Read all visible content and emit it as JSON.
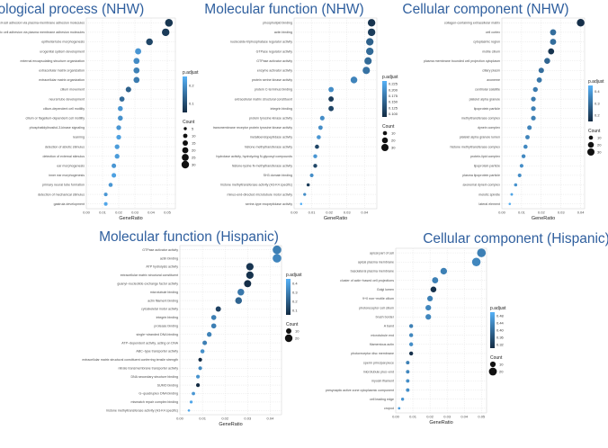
{
  "chart_data": [
    {
      "type": "scatter",
      "title": "Biological process (NHW)",
      "xlabel": "GeneRatio",
      "xlim": [
        0,
        0.055
      ],
      "xticks": [
        "0.00",
        "0.01",
        "0.02",
        "0.03",
        "0.04",
        "0.05"
      ],
      "color_legend_title": "p.adjust",
      "color_ticks": [
        "0.2",
        "0.1"
      ],
      "color_range": [
        0.0,
        0.25
      ],
      "size_legend_title": "Count",
      "size_legend_values": [
        "5",
        "10",
        "15",
        "20",
        "25",
        "30"
      ],
      "size_values": [
        5,
        10,
        15,
        20,
        25,
        30
      ],
      "categories": [
        "cell-cell adhesion via plasma-membrane adhesion molecules",
        "homophilic cell adhesion via plasma membrane adhesion molecules",
        "epithelial tube morphogenesis",
        "urogenital system development",
        "external encapsulating structure organization",
        "extracellular matrix organization",
        "extracellular matrix organization",
        "cilium movement",
        "neural tube development",
        "cilium-dependent cell motility",
        "cilium or flagellum-dependent cell motility",
        "phosphatidylinositol-3-kinase signaling",
        "learning",
        "detection of abiotic stimulus",
        "detection of external stimulus",
        "ear morphogenesis",
        "inner ear morphogenesis",
        "primary neural tube formation",
        "detection of mechanical stimulus",
        "gastrula development"
      ],
      "x": [
        0.051,
        0.049,
        0.039,
        0.032,
        0.031,
        0.031,
        0.031,
        0.026,
        0.022,
        0.021,
        0.021,
        0.02,
        0.02,
        0.019,
        0.019,
        0.017,
        0.017,
        0.015,
        0.012,
        0.012
      ],
      "count": [
        31,
        30,
        24,
        20,
        19,
        19,
        19,
        16,
        14,
        13,
        13,
        12,
        12,
        12,
        12,
        11,
        11,
        9,
        7,
        7
      ],
      "padjust": [
        0.02,
        0.03,
        0.05,
        0.2,
        0.18,
        0.16,
        0.15,
        0.1,
        0.12,
        0.2,
        0.19,
        0.2,
        0.22,
        0.21,
        0.21,
        0.2,
        0.22,
        0.2,
        0.2,
        0.23
      ]
    },
    {
      "type": "scatter",
      "title": "Molecular function (NHW)",
      "xlabel": "GeneRatio",
      "xlim": [
        0,
        0.047
      ],
      "xticks": [
        "0.00",
        "0.01",
        "0.02",
        "0.03",
        "0.04"
      ],
      "color_legend_title": "p.adjust",
      "color_ticks": [
        "0.225",
        "0.200",
        "0.175",
        "0.150",
        "0.125",
        "0.100"
      ],
      "color_range": [
        0.09,
        0.24
      ],
      "size_legend_title": "Count",
      "size_legend_values": [
        "10",
        "20",
        "30"
      ],
      "size_values": [
        10,
        20,
        30
      ],
      "categories": [
        "phospholipid binding",
        "actin binding",
        "nucleoside-triphosphatase regulator activity",
        "GTPase regulator activity",
        "GTPase activator activity",
        "enzyme activator activity",
        "protein serine kinase activity",
        "protein C-terminus binding",
        "extracellular matrix structural constituent",
        "integrin binding",
        "protein tyrosine kinase activity",
        "transmembrane receptor protein tyrosine kinase activity",
        "metalloendopeptidase activity",
        "histone methyltransferase activity",
        "hydrolase activity, hydrolyzing N-glycosyl compounds",
        "histone-lysine N-methyltransferase activity",
        "SH3 domain binding",
        "histone methyltransferase activity (H3-K4 specific)",
        "minus-end-directed microtubule motor activity",
        "serine-type exopeptidase activity"
      ],
      "x": [
        0.044,
        0.044,
        0.043,
        0.043,
        0.042,
        0.041,
        0.034,
        0.021,
        0.021,
        0.021,
        0.016,
        0.015,
        0.014,
        0.013,
        0.012,
        0.012,
        0.01,
        0.008,
        0.006,
        0.004
      ],
      "count": [
        33,
        33,
        32,
        32,
        31,
        31,
        26,
        16,
        16,
        16,
        12,
        11,
        10,
        10,
        9,
        9,
        8,
        6,
        5,
        3
      ],
      "padjust": [
        0.1,
        0.11,
        0.15,
        0.16,
        0.16,
        0.17,
        0.19,
        0.2,
        0.11,
        0.12,
        0.2,
        0.2,
        0.21,
        0.12,
        0.21,
        0.12,
        0.2,
        0.11,
        0.2,
        0.24
      ]
    },
    {
      "type": "scatter",
      "title": "Cellular component (NHW)",
      "xlabel": "GeneRatio",
      "xlim": [
        0,
        0.042
      ],
      "xticks": [
        "0.00",
        "0.01",
        "0.02",
        "0.03",
        "0.04"
      ],
      "color_legend_title": "p.adjust",
      "color_ticks": [
        "0.4",
        "0.3",
        "0.2"
      ],
      "color_range": [
        0.15,
        0.45
      ],
      "size_legend_title": "Count",
      "size_legend_values": [
        "10",
        "20",
        "30"
      ],
      "size_values": [
        10,
        20,
        30
      ],
      "categories": [
        "collagen-containing extracellular matrix",
        "cell cortex",
        "cytoplasmic region",
        "motile cilium",
        "plasma membrane bounded cell projection cytoplasm",
        "ciliary plasm",
        "axoneme",
        "centriolar satellite",
        "platelet alpha granule",
        "lipoprotein particle",
        "methyltransferase complex",
        "dynein complex",
        "platelet alpha granule lumen",
        "histone methyltransferase complex",
        "protein-lipid complex",
        "lipoprotein particle",
        "plasma lipoprotein particle",
        "axonemal dynein complex",
        "meiotic spindle",
        "lateral element"
      ],
      "x": [
        0.04,
        0.026,
        0.026,
        0.025,
        0.023,
        0.02,
        0.019,
        0.017,
        0.016,
        0.016,
        0.016,
        0.014,
        0.013,
        0.012,
        0.011,
        0.01,
        0.009,
        0.007,
        0.005,
        0.004
      ],
      "count": [
        34,
        22,
        22,
        21,
        20,
        17,
        16,
        14,
        13,
        13,
        13,
        12,
        11,
        10,
        9,
        8,
        8,
        6,
        4,
        3
      ],
      "padjust": [
        0.16,
        0.3,
        0.3,
        0.17,
        0.28,
        0.3,
        0.32,
        0.33,
        0.33,
        0.34,
        0.34,
        0.35,
        0.35,
        0.36,
        0.36,
        0.37,
        0.37,
        0.38,
        0.42,
        0.44
      ]
    },
    {
      "type": "scatter",
      "title": "Molecular function (Hispanic)",
      "xlabel": "GeneRatio",
      "xlim": [
        0,
        0.045
      ],
      "xticks": [
        "0.00",
        "0.01",
        "0.02",
        "0.03",
        "0.04"
      ],
      "color_legend_title": "p.adjust",
      "color_ticks": [
        "0.4",
        "0.3",
        "0.2",
        "0.1"
      ],
      "color_range": [
        0.05,
        0.45
      ],
      "size_legend_title": "Count",
      "size_legend_values": [
        "10",
        "20"
      ],
      "size_values": [
        10,
        20
      ],
      "categories": [
        "GTPase activator activity",
        "actin binding",
        "ATP hydrolysis activity",
        "extracellular matrix structural constituent",
        "guanyl−nucleotide exchange factor activity",
        "microtubule binding",
        "actin filament binding",
        "cytoskeletal motor activity",
        "integrin binding",
        "protease binding",
        "single−stranded DNA binding",
        "ATP−dependent activity, acting on DNA",
        "ABC−type transporter activity",
        "extracellular matrix structural constituent conferring tensile strength",
        "nitrate transmembrane transporter activity",
        "DNA secondary structure binding",
        "SUMO binding",
        "G−quadruplex DNA binding",
        "mismatch repair complex binding",
        "histone methyltransferase activity (H3-K4 specific)"
      ],
      "x": [
        0.043,
        0.043,
        0.031,
        0.031,
        0.03,
        0.027,
        0.026,
        0.017,
        0.015,
        0.015,
        0.013,
        0.011,
        0.01,
        0.009,
        0.009,
        0.008,
        0.008,
        0.006,
        0.005,
        0.004
      ],
      "count": [
        26,
        26,
        19,
        19,
        18,
        16,
        16,
        10,
        9,
        9,
        8,
        7,
        6,
        5,
        5,
        5,
        5,
        4,
        3,
        2
      ],
      "padjust": [
        0.3,
        0.32,
        0.08,
        0.07,
        0.06,
        0.28,
        0.22,
        0.12,
        0.3,
        0.3,
        0.31,
        0.3,
        0.35,
        0.05,
        0.33,
        0.36,
        0.05,
        0.37,
        0.42,
        0.42
      ]
    },
    {
      "type": "scatter",
      "title": "Cellular component (Hispanic)",
      "xlabel": "GeneRatio",
      "xlim": [
        0,
        0.053
      ],
      "xticks": [
        "0.00",
        "0.01",
        "0.02",
        "0.03",
        "0.04",
        "0.05"
      ],
      "color_legend_title": "p.adjust",
      "color_ticks": [
        "0.48",
        "0.44",
        "0.40",
        "0.36",
        "0.32"
      ],
      "color_range": [
        0.3,
        0.49
      ],
      "size_legend_title": "Count",
      "size_legend_values": [
        "10",
        "20"
      ],
      "size_values": [
        10,
        20
      ],
      "categories": [
        "apical part of cell",
        "apical plasma membrane",
        "basolateral plasma membrane",
        "cluster of actin−based cell projections",
        "Golgi lumen",
        "9+0 non−motile cilium",
        "photoreceptor cell cilium",
        "brush border",
        "A band",
        "microtubule end",
        "filamentous actin",
        "photoreceptor disc membrane",
        "sperm principal piece",
        "microtubule plus−end",
        "myosin filament",
        "presynaptic active zone cytoplasmic component",
        "cell leading edge",
        "cropod"
      ],
      "x": [
        0.05,
        0.047,
        0.028,
        0.023,
        0.022,
        0.02,
        0.019,
        0.019,
        0.009,
        0.009,
        0.009,
        0.009,
        0.007,
        0.007,
        0.007,
        0.007,
        0.004,
        0.002
      ],
      "count": [
        24,
        23,
        14,
        12,
        11,
        10,
        10,
        10,
        5,
        5,
        5,
        5,
        4,
        4,
        4,
        4,
        3,
        2
      ],
      "padjust": [
        0.42,
        0.43,
        0.42,
        0.42,
        0.31,
        0.42,
        0.43,
        0.43,
        0.42,
        0.43,
        0.44,
        0.31,
        0.42,
        0.43,
        0.44,
        0.44,
        0.45,
        0.46
      ]
    }
  ]
}
